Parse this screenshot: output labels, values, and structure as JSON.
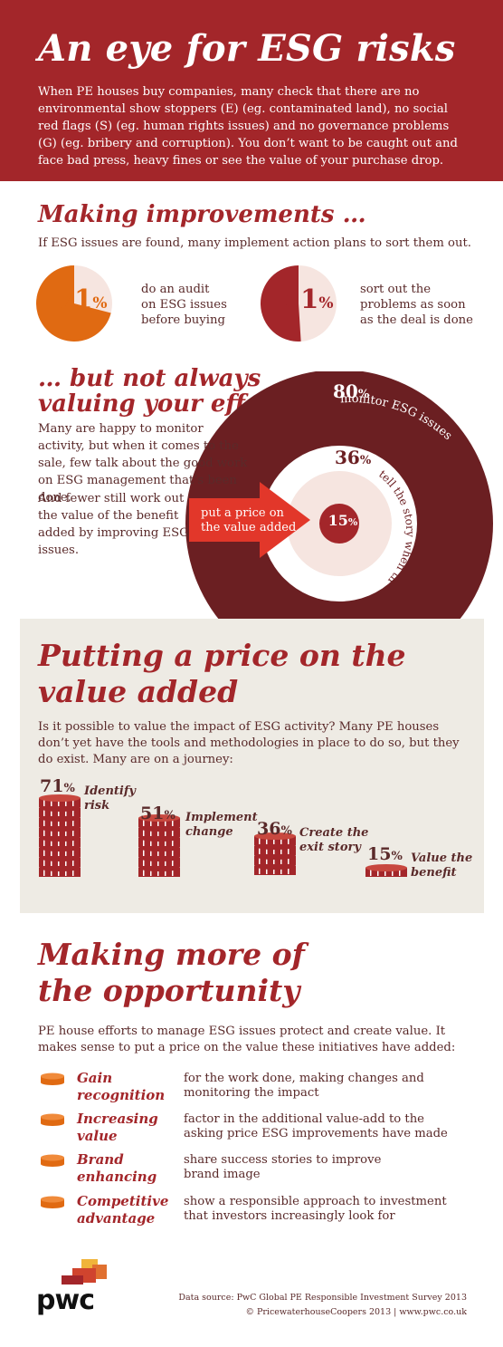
{
  "header": {
    "title": "An eye for ESG risks",
    "body": "When PE houses buy companies, many check that there are no environmental show stoppers (E) (eg. contaminated land), no social red flags (S) (eg. human rights issues) and no governance problems (G) (eg. bribery and corruption). You don’t want to be caught out and face bad press, heavy fines or see the value of your purchase drop."
  },
  "improvements": {
    "title": "Making improvements …",
    "intro": "If ESG issues are found, many implement action plans to sort them out.",
    "stats": [
      {
        "value": 71,
        "unit": "%",
        "line1": "do an audit",
        "line2": "on ESG issues",
        "line3": "before buying",
        "color": "#e06a12"
      },
      {
        "value": 51,
        "unit": "%",
        "line1": "sort out the",
        "line2": "problems as soon",
        "line3": "as the deal is done",
        "color": "#a3262a"
      }
    ]
  },
  "valuing": {
    "title_line1": "… but not always",
    "title_line2": "valuing your efforts",
    "para1": "Many are happy to monitor activity, but when it comes to the sale, few talk about the good work on ESG management that’s been done.",
    "para2": "And fewer still work out the value of the benefit added by improving ESG issues.",
    "arrow_line1": "put a price on",
    "arrow_line2": "the value added",
    "outer": {
      "value": "80",
      "unit": "%",
      "label": "monitor ESG issues"
    },
    "middle": {
      "value": "36",
      "unit": "%",
      "label": "tell the story when they sell"
    },
    "inner": {
      "value": "15",
      "unit": "%"
    }
  },
  "pricing": {
    "title_line1": "Putting a price on the",
    "title_line2": "value added",
    "body": "Is it possible to value the impact of ESG activity? Many PE houses don’t yet have the tools and methodologies in place to do so, but they do exist. Many are on a journey:",
    "steps": [
      {
        "value": "71",
        "unit": "%",
        "line1": "Identify",
        "line2": "risk",
        "coins": 8
      },
      {
        "value": "51",
        "unit": "%",
        "line1": "Implement",
        "line2": "change",
        "coins": 6
      },
      {
        "value": "36",
        "unit": "%",
        "line1": "Create the",
        "line2": "exit story",
        "coins": 4
      },
      {
        "value": "15",
        "unit": "%",
        "line1": "Value the",
        "line2": "benefit",
        "coins": 1
      }
    ]
  },
  "opportunity": {
    "title_line1": "Making more of",
    "title_line2": "the opportunity",
    "intro": "PE house efforts to manage ESG issues protect and create value. It makes sense to put a price on the value these initiatives have added:",
    "items": [
      {
        "label1": "Gain",
        "label2": "recognition",
        "desc1": "for the work done, making changes and",
        "desc2": "monitoring the impact"
      },
      {
        "label1": "Increasing",
        "label2": "value",
        "desc1": "factor in the additional value-add to the",
        "desc2": "asking price ESG improvements have made"
      },
      {
        "label1": "Brand",
        "label2": "enhancing",
        "desc1": "share success stories to improve",
        "desc2": "brand image"
      },
      {
        "label1": "Competitive",
        "label2": "advantage",
        "desc1": "show a responsible approach to investment",
        "desc2": "that investors increasingly look for"
      }
    ]
  },
  "footer": {
    "logo": "pwc",
    "source": "Data source: PwC Global PE Responsible Investment Survey 2013",
    "copyright": "© PricewaterhouseCoopers 2013  |  www.pwc.co.uk"
  },
  "colors": {
    "brand_red": "#a3262a",
    "dark_maroon": "#6b1f22",
    "orange": "#e06a12",
    "light_pink": "#f6e5e0",
    "grey_panel": "#eeebe4"
  }
}
